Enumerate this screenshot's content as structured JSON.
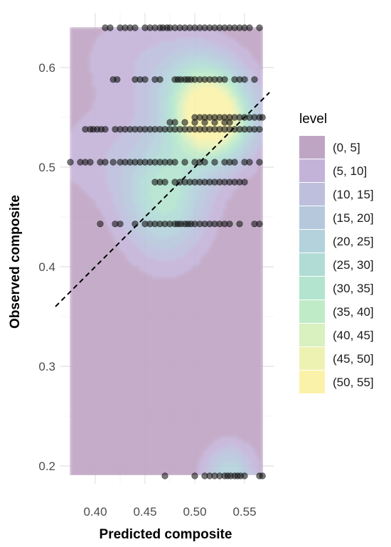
{
  "chart_data": {
    "type": "scatter",
    "xlabel": "Predicted composite",
    "ylabel": "Observed composite",
    "xlim": [
      0.37,
      0.57
    ],
    "ylim": [
      0.19,
      0.64
    ],
    "x_ticks": [
      0.4,
      0.45,
      0.5,
      0.55
    ],
    "x_tick_labels": [
      "0.40",
      "0.45",
      "0.50",
      "0.55"
    ],
    "y_ticks": [
      0.2,
      0.3,
      0.4,
      0.5,
      0.6
    ],
    "y_tick_labels": [
      "0.2",
      "0.3",
      "0.4",
      "0.5",
      "0.6"
    ],
    "grid": true,
    "reference_line": {
      "type": "identity",
      "style": "dashed",
      "x_range": [
        0.36,
        0.575
      ]
    },
    "density_overlay": {
      "type": "filled_2d_density",
      "peaks": [
        {
          "x": 0.52,
          "y": 0.545,
          "level": 52,
          "sx": 0.028,
          "sy": 0.03
        },
        {
          "x": 0.47,
          "y": 0.47,
          "level": 32,
          "sx": 0.03,
          "sy": 0.042
        },
        {
          "x": 0.505,
          "y": 0.58,
          "level": 24,
          "sx": 0.03,
          "sy": 0.03
        },
        {
          "x": 0.535,
          "y": 0.19,
          "level": 25,
          "sx": 0.018,
          "sy": 0.022
        },
        {
          "x": 0.44,
          "y": 0.61,
          "level": 8,
          "sx": 0.045,
          "sy": 0.04
        },
        {
          "x": 0.4,
          "y": 0.51,
          "level": 7,
          "sx": 0.04,
          "sy": 0.035
        }
      ]
    },
    "legend": {
      "title": "level",
      "position": "right",
      "entries": [
        {
          "label": "(0, 5]",
          "color": "#bfa5c4"
        },
        {
          "label": "(5, 10]",
          "color": "#c4b3d9"
        },
        {
          "label": "(10, 15]",
          "color": "#bdbfdd"
        },
        {
          "label": "(15, 20]",
          "color": "#b6c8dc"
        },
        {
          "label": "(20, 25]",
          "color": "#b4d2dc"
        },
        {
          "label": "(25, 30]",
          "color": "#b1dcd6"
        },
        {
          "label": "(30, 35]",
          "color": "#b3e4cf"
        },
        {
          "label": "(35, 40]",
          "color": "#c0ebc7"
        },
        {
          "label": "(40, 45]",
          "color": "#d9f0bf"
        },
        {
          "label": "(45, 50]",
          "color": "#edf2b2"
        },
        {
          "label": "(50, 55]",
          "color": "#fbf2a9"
        }
      ]
    },
    "points": [
      {
        "y": 0.64,
        "x": [
          0.41,
          0.415,
          0.425,
          0.43,
          0.435,
          0.44,
          0.45,
          0.455,
          0.46,
          0.465,
          0.468,
          0.472,
          0.475,
          0.48,
          0.485,
          0.49,
          0.495,
          0.5,
          0.505,
          0.51,
          0.515,
          0.52,
          0.525,
          0.53,
          0.535,
          0.54,
          0.545,
          0.55,
          0.555,
          0.565
        ]
      },
      {
        "y": 0.588,
        "x": [
          0.418,
          0.422,
          0.44,
          0.445,
          0.45,
          0.46,
          0.465,
          0.48,
          0.483,
          0.486,
          0.49,
          0.493,
          0.496,
          0.5,
          0.505,
          0.51,
          0.515,
          0.52,
          0.525,
          0.53,
          0.54,
          0.545,
          0.55,
          0.56
        ]
      },
      {
        "y": 0.55,
        "x": [
          0.5,
          0.505,
          0.51,
          0.515,
          0.52,
          0.525,
          0.53,
          0.535,
          0.54,
          0.545,
          0.55,
          0.555,
          0.56,
          0.565,
          0.568
        ]
      },
      {
        "y": 0.545,
        "x": [
          0.475,
          0.48,
          0.49,
          0.5,
          0.51,
          0.52,
          0.53,
          0.535
        ]
      },
      {
        "y": 0.538,
        "x": [
          0.39,
          0.395,
          0.398,
          0.402,
          0.406,
          0.41,
          0.42,
          0.425,
          0.43,
          0.435,
          0.44,
          0.445,
          0.45,
          0.455,
          0.46,
          0.465,
          0.47,
          0.475,
          0.48,
          0.485,
          0.49,
          0.495,
          0.5,
          0.505,
          0.51,
          0.515,
          0.52,
          0.525,
          0.53,
          0.535,
          0.54,
          0.545,
          0.55,
          0.555,
          0.56,
          0.565
        ]
      },
      {
        "y": 0.505,
        "x": [
          0.375,
          0.385,
          0.39,
          0.395,
          0.405,
          0.41,
          0.418,
          0.425,
          0.43,
          0.435,
          0.44,
          0.445,
          0.45,
          0.455,
          0.46,
          0.465,
          0.47,
          0.475,
          0.48,
          0.49,
          0.5,
          0.505,
          0.51,
          0.52,
          0.53,
          0.535,
          0.54,
          0.55,
          0.555,
          0.565
        ]
      },
      {
        "y": 0.485,
        "x": [
          0.46,
          0.465,
          0.47,
          0.48,
          0.485,
          0.49,
          0.495,
          0.5,
          0.505,
          0.51,
          0.515,
          0.52,
          0.525,
          0.53,
          0.535,
          0.54,
          0.545,
          0.55
        ]
      },
      {
        "y": 0.443,
        "x": [
          0.405,
          0.42,
          0.425,
          0.44,
          0.45,
          0.455,
          0.46,
          0.465,
          0.47,
          0.475,
          0.48,
          0.483,
          0.486,
          0.49,
          0.493,
          0.496,
          0.5,
          0.505,
          0.51,
          0.515,
          0.52,
          0.525,
          0.53,
          0.535,
          0.545,
          0.56,
          0.565
        ]
      },
      {
        "y": 0.19,
        "x": [
          0.47,
          0.5,
          0.51,
          0.515,
          0.52,
          0.525,
          0.53,
          0.533,
          0.536,
          0.54,
          0.543,
          0.546,
          0.55,
          0.565,
          0.568
        ]
      }
    ]
  }
}
